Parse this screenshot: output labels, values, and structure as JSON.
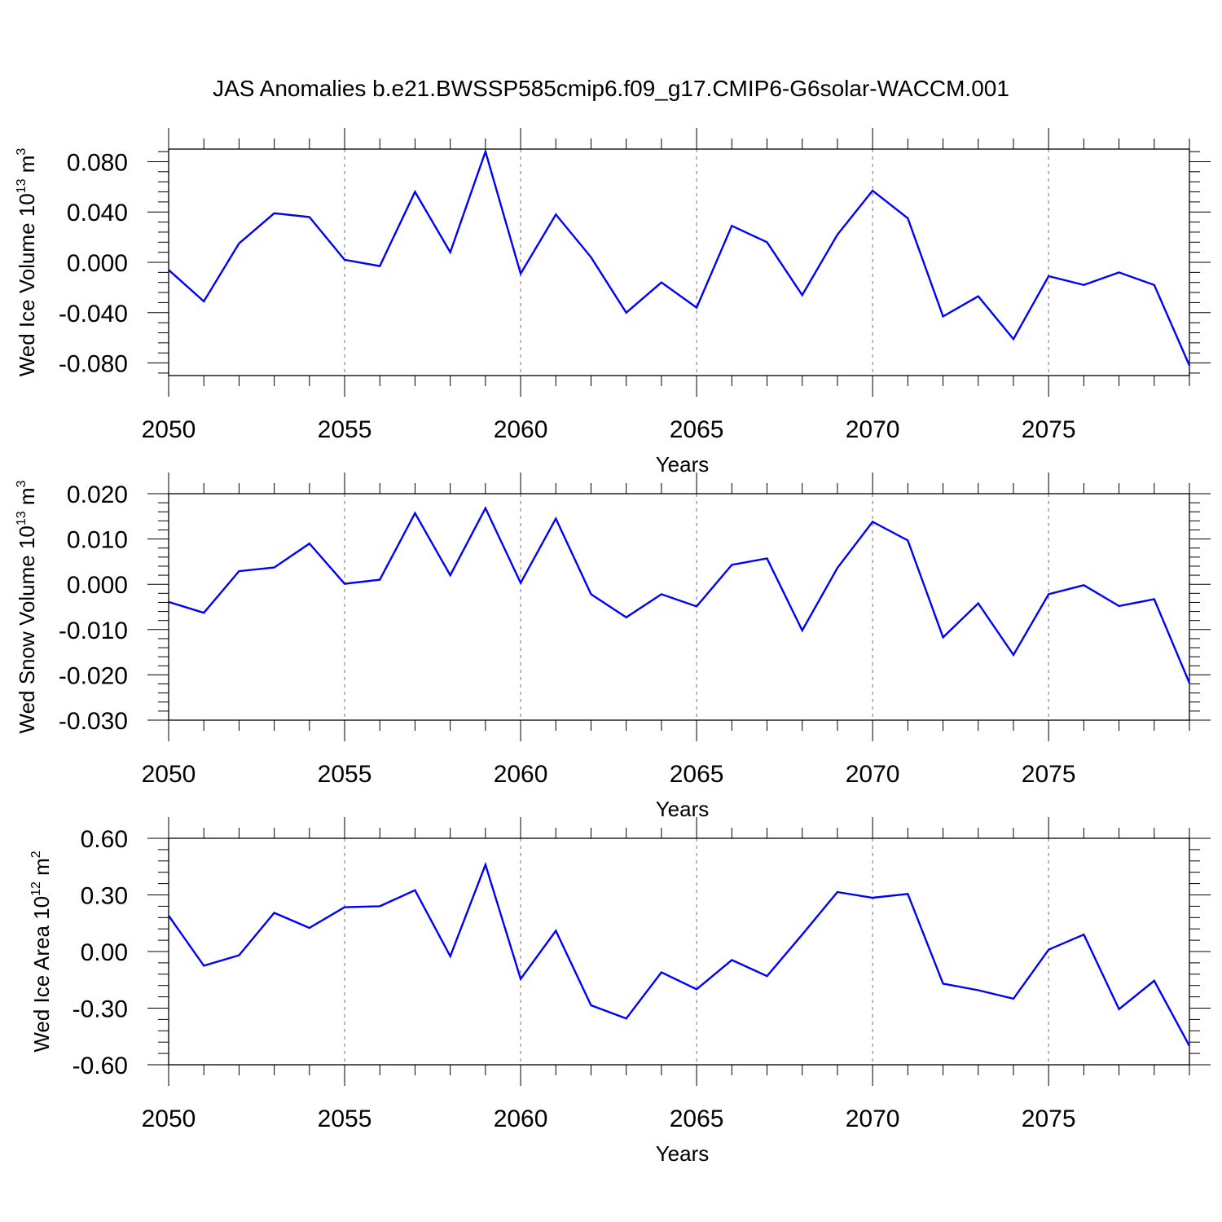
{
  "title": "JAS Anomalies b.e21.BWSSP585cmip6.f09_g17.CMIP6-G6solar-WACCM.001",
  "chart_data": [
    {
      "type": "line",
      "xlabel": "Years",
      "ylabel": {
        "base": "Wed Ice Volume 10",
        "exp": "13",
        "unit": "m",
        "unit_exp": "3"
      },
      "x": [
        2050,
        2051,
        2052,
        2053,
        2054,
        2055,
        2056,
        2057,
        2058,
        2059,
        2060,
        2061,
        2062,
        2063,
        2064,
        2065,
        2066,
        2067,
        2068,
        2069,
        2070,
        2071,
        2072,
        2073,
        2074,
        2075,
        2076,
        2077,
        2078,
        2079
      ],
      "values": [
        -0.006,
        -0.031,
        0.015,
        0.039,
        0.036,
        0.002,
        -0.003,
        0.056,
        0.008,
        0.088,
        -0.009,
        0.038,
        0.004,
        -0.04,
        -0.016,
        -0.036,
        0.029,
        0.016,
        -0.026,
        0.022,
        0.057,
        0.035,
        -0.043,
        -0.027,
        -0.061,
        -0.011,
        -0.018,
        -0.008,
        -0.018,
        -0.082
      ],
      "xlim": [
        2050,
        2079
      ],
      "ylim": [
        -0.09,
        0.09
      ],
      "yticks": [
        -0.08,
        -0.04,
        0.0,
        0.04,
        0.08
      ],
      "ytick_labels": [
        "-0.080",
        "-0.040",
        "0.000",
        "0.040",
        "0.080"
      ],
      "xticks": [
        2050,
        2055,
        2060,
        2065,
        2070,
        2075
      ],
      "xtick_labels": [
        "2050",
        "2055",
        "2060",
        "2065",
        "2070",
        "2075"
      ],
      "line_color": "#0000ff",
      "grid": "vertical dashed at labeled years"
    },
    {
      "type": "line",
      "xlabel": "Years",
      "ylabel": {
        "base": "Wed Snow Volume 10",
        "exp": "13",
        "unit": "m",
        "unit_exp": "3"
      },
      "x": [
        2050,
        2051,
        2052,
        2053,
        2054,
        2055,
        2056,
        2057,
        2058,
        2059,
        2060,
        2061,
        2062,
        2063,
        2064,
        2065,
        2066,
        2067,
        2068,
        2069,
        2070,
        2071,
        2072,
        2073,
        2074,
        2075,
        2076,
        2077,
        2078,
        2079
      ],
      "values": [
        -0.0039,
        -0.0063,
        0.0029,
        0.0037,
        0.009,
        0.0001,
        0.001,
        0.0157,
        0.002,
        0.0168,
        0.0003,
        0.0145,
        -0.0022,
        -0.0073,
        -0.0022,
        -0.0049,
        0.0043,
        0.0057,
        -0.0102,
        0.0036,
        0.0138,
        0.0097,
        -0.0117,
        -0.0042,
        -0.0156,
        -0.0022,
        -0.0002,
        -0.0048,
        -0.0033,
        -0.0218
      ],
      "xlim": [
        2050,
        2079
      ],
      "ylim": [
        -0.03,
        0.02
      ],
      "yticks": [
        -0.03,
        -0.02,
        -0.01,
        0.0,
        0.01,
        0.02
      ],
      "ytick_labels": [
        "-0.030",
        "-0.020",
        "-0.010",
        "0.000",
        "0.010",
        "0.020"
      ],
      "xticks": [
        2050,
        2055,
        2060,
        2065,
        2070,
        2075
      ],
      "xtick_labels": [
        "2050",
        "2055",
        "2060",
        "2065",
        "2070",
        "2075"
      ],
      "line_color": "#0000ff",
      "grid": "vertical dashed at labeled years"
    },
    {
      "type": "line",
      "xlabel": "Years",
      "ylabel": {
        "base": "Wed Ice Area 10",
        "exp": "12",
        "unit": "m",
        "unit_exp": "2"
      },
      "x": [
        2050,
        2051,
        2052,
        2053,
        2054,
        2055,
        2056,
        2057,
        2058,
        2059,
        2060,
        2061,
        2062,
        2063,
        2064,
        2065,
        2066,
        2067,
        2068,
        2069,
        2070,
        2071,
        2072,
        2073,
        2074,
        2075,
        2076,
        2077,
        2078,
        2079
      ],
      "values": [
        0.19,
        -0.075,
        -0.02,
        0.205,
        0.125,
        0.235,
        0.24,
        0.325,
        -0.025,
        0.46,
        -0.145,
        0.11,
        -0.285,
        -0.355,
        -0.11,
        -0.2,
        -0.045,
        -0.13,
        0.09,
        0.315,
        0.285,
        0.305,
        -0.17,
        -0.205,
        -0.25,
        0.01,
        0.09,
        -0.305,
        -0.155,
        -0.5
      ],
      "xlim": [
        2050,
        2079
      ],
      "ylim": [
        -0.6,
        0.6
      ],
      "yticks": [
        -0.6,
        -0.3,
        0.0,
        0.3,
        0.6
      ],
      "ytick_labels": [
        "-0.60",
        "-0.30",
        "0.00",
        "0.30",
        "0.60"
      ],
      "xticks": [
        2050,
        2055,
        2060,
        2065,
        2070,
        2075
      ],
      "xtick_labels": [
        "2050",
        "2055",
        "2060",
        "2065",
        "2070",
        "2075"
      ],
      "line_color": "#0000ff",
      "grid": "vertical dashed at labeled years"
    }
  ]
}
